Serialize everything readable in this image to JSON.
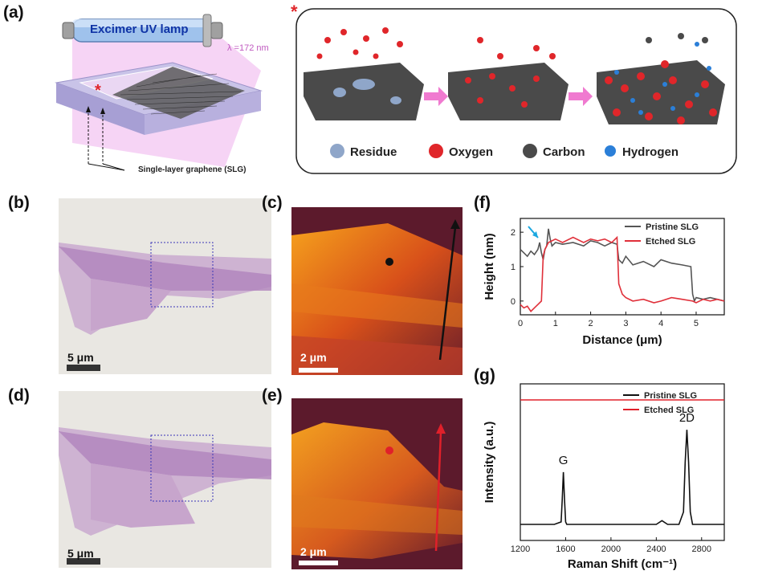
{
  "labels": {
    "a": "(a)",
    "b": "(b)",
    "c": "(c)",
    "d": "(d)",
    "e": "(e)",
    "f": "(f)",
    "g": "(g)"
  },
  "panel_a": {
    "lamp_label": "Excimer UV lamp",
    "wavelength": "λ =172 nm",
    "substrate_label": "Single-layer graphene (SLG)",
    "star": "*",
    "legend": [
      "Residue",
      "Oxygen",
      "Carbon",
      "Hydrogen"
    ],
    "colors": {
      "residue": "#8fa6c9",
      "oxygen": "#e0262a",
      "carbon": "#4a4a4a",
      "hydrogen": "#2b7fd8",
      "arrow": "#f07ad0",
      "uv": "#f2b3f0"
    }
  },
  "scalebars": {
    "b": "5 μm",
    "c": "2 μm",
    "d": "5 μm",
    "e": "2 μm"
  },
  "chart_data": [
    {
      "type": "line",
      "panel": "f",
      "xlabel": "Distance (μm)",
      "ylabel": "Height (nm)",
      "xlim": [
        0,
        5.8
      ],
      "ylim": [
        -0.4,
        2.4
      ],
      "xticks": [
        0,
        1,
        2,
        3,
        4,
        5
      ],
      "yticks": [
        0,
        1,
        2
      ],
      "legend_position": "top-right",
      "series": [
        {
          "name": "Pristine SLG",
          "color": "#555555",
          "x": [
            0,
            0.1,
            0.2,
            0.3,
            0.4,
            0.5,
            0.55,
            0.6,
            0.65,
            0.7,
            0.75,
            0.8,
            0.85,
            0.9,
            1.0,
            1.2,
            1.5,
            1.8,
            2.0,
            2.2,
            2.4,
            2.6,
            2.75,
            2.8,
            2.9,
            3.0,
            3.2,
            3.5,
            3.8,
            4.0,
            4.3,
            4.6,
            4.85,
            4.9,
            4.95,
            5.0,
            5.2,
            5.4,
            5.6,
            5.8
          ],
          "y": [
            1.5,
            1.4,
            1.3,
            1.45,
            1.35,
            1.5,
            1.7,
            1.4,
            1.2,
            1.5,
            1.6,
            2.1,
            1.8,
            1.6,
            1.7,
            1.65,
            1.7,
            1.6,
            1.75,
            1.7,
            1.6,
            1.7,
            1.65,
            1.2,
            1.1,
            1.3,
            1.05,
            1.15,
            1.0,
            1.2,
            1.1,
            1.05,
            1.0,
            0.2,
            0.0,
            0.1,
            0.05,
            0.1,
            0.05,
            0.0
          ]
        },
        {
          "name": "Etched SLG",
          "color": "#e0303a",
          "x": [
            0,
            0.1,
            0.2,
            0.3,
            0.4,
            0.5,
            0.6,
            0.65,
            0.7,
            0.8,
            0.9,
            1.0,
            1.2,
            1.5,
            1.8,
            2.0,
            2.2,
            2.4,
            2.6,
            2.75,
            2.8,
            2.9,
            3.0,
            3.2,
            3.5,
            3.8,
            4.0,
            4.3,
            4.6,
            4.9,
            5.0,
            5.2,
            5.4,
            5.6,
            5.8
          ],
          "y": [
            -0.1,
            -0.2,
            -0.15,
            -0.3,
            -0.2,
            -0.1,
            0.0,
            1.3,
            1.5,
            1.7,
            1.75,
            1.8,
            1.7,
            1.85,
            1.7,
            1.8,
            1.75,
            1.8,
            1.7,
            1.85,
            0.5,
            0.2,
            0.1,
            0.0,
            0.05,
            -0.05,
            0.0,
            0.1,
            0.05,
            0.0,
            -0.05,
            0.05,
            0.0,
            0.05,
            0.0
          ]
        }
      ]
    },
    {
      "type": "line",
      "panel": "g",
      "xlabel": "Raman Shift (cm⁻¹)",
      "ylabel": "Intensity (a.u.)",
      "xlim": [
        1200,
        3000
      ],
      "xticks": [
        1200,
        1600,
        2000,
        2400,
        2800
      ],
      "legend_position": "top-right",
      "annotations": [
        {
          "text": "G",
          "x": 1580
        },
        {
          "text": "2D",
          "x": 2670
        }
      ],
      "series": [
        {
          "name": "Pristine SLG",
          "color": "#111111",
          "x": [
            1200,
            1500,
            1560,
            1570,
            1580,
            1590,
            1600,
            1610,
            1700,
            2000,
            2400,
            2450,
            2500,
            2600,
            2640,
            2655,
            2670,
            2685,
            2700,
            2720,
            2800,
            3000
          ],
          "y": [
            0.0,
            0.0,
            0.02,
            0.2,
            0.42,
            0.2,
            0.02,
            0.0,
            0.0,
            0.0,
            0.0,
            0.03,
            0.0,
            0.0,
            0.1,
            0.5,
            0.76,
            0.5,
            0.1,
            0.0,
            0.0,
            0.0
          ]
        },
        {
          "name": "Etched SLG",
          "color": "#e0202a",
          "x": [
            1200,
            3000
          ],
          "y": [
            1.0,
            1.0
          ]
        }
      ]
    }
  ]
}
